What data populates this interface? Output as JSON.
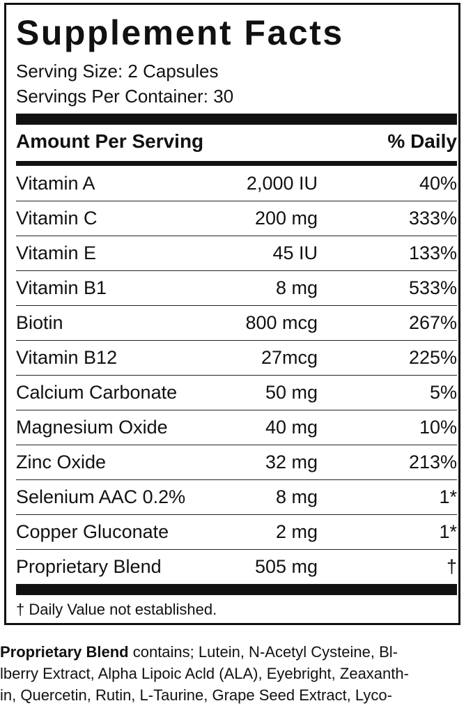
{
  "title": "Supplement Facts",
  "serving_size": "Serving Size: 2 Capsules",
  "servings_per_container": "Servings Per Container:  30",
  "header": {
    "amount_per_serving": "Amount Per Serving",
    "daily_value": "% Daily"
  },
  "rows": [
    {
      "name": "Vitamin A",
      "amount": "2,000 IU",
      "dv": "40%"
    },
    {
      "name": "Vitamin C",
      "amount": "200 mg",
      "dv": "333%"
    },
    {
      "name": "Vitamin E",
      "amount": "45 IU",
      "dv": "133%"
    },
    {
      "name": "Vitamin B1",
      "amount": "8 mg",
      "dv": "533%"
    },
    {
      "name": "Biotin",
      "amount": "800 mcg",
      "dv": "267%"
    },
    {
      "name": "Vitamin B12",
      "amount": "27mcg",
      "dv": "225%"
    },
    {
      "name": "Calcium Carbonate",
      "amount": "50 mg",
      "dv": "5%"
    },
    {
      "name": "Magnesium Oxide",
      "amount": "40 mg",
      "dv": "10%"
    },
    {
      "name": "Zinc Oxide",
      "amount": "32 mg",
      "dv": "213%"
    },
    {
      "name": "Selenium AAC 0.2%",
      "amount": "8 mg",
      "dv": "1*"
    },
    {
      "name": "Copper Gluconate",
      "amount": "2 mg",
      "dv": "1*"
    },
    {
      "name": "Proprietary Blend",
      "amount": "505 mg",
      "dv": "†"
    }
  ],
  "footnote": "† Daily Value not established.",
  "blend": {
    "label": "Proprietary Blend",
    "line1_rest": " contains; Lutein, N-Acetyl Cysteine, Bl-",
    "line2": "lberry Extract, Alpha Lipoic Acld (ALA), Eyebright, Zeaxanth-",
    "line3": "in, Quercetin, Rutin, L-Taurine, Grape Seed Extract, Lyco-"
  }
}
